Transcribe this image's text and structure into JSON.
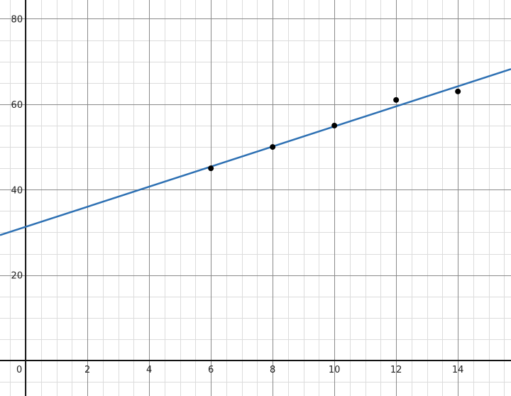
{
  "chart_data": {
    "type": "scatter",
    "title": "",
    "xlabel": "",
    "ylabel": "",
    "xlim": [
      -0.83,
      15.72
    ],
    "ylim": [
      -8.3,
      84.4
    ],
    "grid": true,
    "x_major_step": 2,
    "x_minor_step": 0.5,
    "y_major_step": 20,
    "y_minor_step": 5,
    "x_tick_labels": [
      "0",
      "2",
      "4",
      "6",
      "8",
      "10",
      "12",
      "14"
    ],
    "y_tick_labels": [
      "20",
      "40",
      "60",
      "80"
    ],
    "points": {
      "x": [
        6,
        8,
        10,
        12,
        14
      ],
      "y": [
        45,
        50,
        55,
        61,
        63
      ],
      "color": "#000000"
    },
    "fit_line": {
      "slope": 2.35,
      "intercept": 31.3,
      "color": "#2d70b3"
    }
  }
}
